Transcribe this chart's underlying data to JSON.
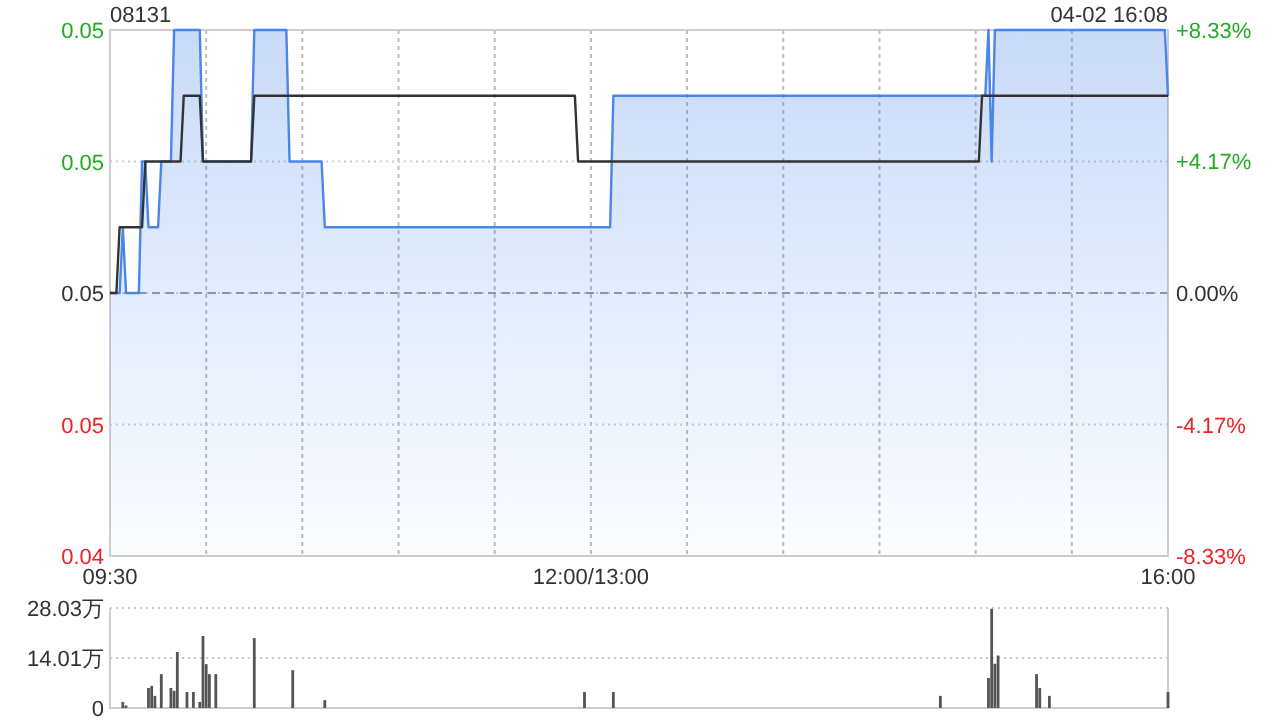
{
  "chart_data": [
    {
      "type": "line",
      "title": "08131",
      "annotations": [
        "04-02 16:08"
      ],
      "grid": true,
      "categories": [
        "09:30",
        null,
        null,
        null,
        null,
        null,
        null,
        null,
        null,
        null,
        null,
        null,
        null,
        null,
        null,
        null,
        null,
        null,
        null,
        null,
        null,
        null,
        null,
        null,
        null,
        null,
        null,
        null,
        null,
        null,
        null,
        null,
        null,
        null,
        null,
        null,
        null,
        null,
        null,
        null,
        null,
        null,
        null,
        null,
        null,
        null,
        null,
        null,
        null,
        null,
        null,
        null,
        null,
        null,
        null,
        null,
        null,
        null,
        null,
        null,
        null,
        null,
        null,
        null,
        null,
        null,
        null,
        null,
        null,
        null,
        null,
        null,
        null,
        null,
        null,
        null,
        null,
        null,
        null,
        null,
        null,
        null,
        null,
        null,
        null,
        null,
        null,
        null,
        null,
        null,
        null,
        null,
        null,
        null,
        null,
        null,
        null,
        null,
        null,
        null,
        null,
        null,
        null,
        null,
        null,
        null,
        null,
        null,
        null,
        null,
        null,
        null,
        null,
        null,
        null,
        null,
        null,
        null,
        null,
        null,
        null,
        null,
        null,
        null,
        null,
        null,
        null,
        null,
        null,
        null,
        null,
        null,
        null,
        null,
        null,
        null,
        null,
        null,
        null,
        null,
        null,
        null,
        null,
        null,
        null,
        null,
        null,
        null,
        null,
        null,
        "12:00/13:00",
        null,
        null,
        null,
        null,
        null,
        null,
        null,
        null,
        null,
        null,
        null,
        null,
        null,
        null,
        null,
        null,
        null,
        null,
        null,
        null,
        null,
        null,
        null,
        null,
        null,
        null,
        null,
        null,
        null,
        null,
        null,
        null,
        null,
        null,
        null,
        null,
        null,
        null,
        null,
        null,
        null,
        null,
        null,
        null,
        null,
        null,
        null,
        null,
        null,
        null,
        null,
        null,
        null,
        null,
        null,
        null,
        null,
        null,
        null,
        null,
        null,
        null,
        null,
        null,
        null,
        null,
        null,
        null,
        null,
        null,
        null,
        null,
        null,
        null,
        null,
        null,
        null,
        null,
        null,
        null,
        null,
        null,
        null,
        null,
        null,
        null,
        null,
        null,
        null,
        null,
        null,
        null,
        null,
        null,
        null,
        null,
        null,
        null,
        null,
        null,
        null,
        null,
        null,
        null,
        null,
        null,
        null,
        null,
        null,
        null,
        null,
        null,
        null,
        null,
        null,
        null,
        null,
        null,
        null,
        null,
        null,
        null,
        null,
        null,
        null,
        null,
        null,
        null,
        null,
        null,
        null,
        null,
        null,
        null,
        null,
        null,
        null,
        null,
        null,
        null,
        null,
        null,
        null,
        null,
        null,
        null,
        null,
        null,
        null,
        null,
        null,
        null,
        null,
        null,
        null,
        null,
        null,
        null,
        null,
        null,
        null,
        null,
        null,
        null,
        null,
        null,
        null,
        null,
        null,
        null,
        null,
        null,
        null,
        null,
        null,
        null,
        null,
        null,
        null,
        "16:00"
      ],
      "ylim": [
        0.044,
        0.052
      ],
      "yticks": [
        {
          "value": 0.052,
          "label": "0.05"
        },
        {
          "value": 0.05,
          "label": "0.05"
        },
        {
          "value": 0.048,
          "label": "0.05"
        },
        {
          "value": 0.046,
          "label": "0.05"
        },
        {
          "value": 0.044,
          "label": "0.04"
        }
      ],
      "y2lim": [
        -8.33,
        8.33
      ],
      "y2ticks": [
        {
          "value": 8.33,
          "label": "+8.33%"
        },
        {
          "value": 4.17,
          "label": "+4.17%"
        },
        {
          "value": 0,
          "label": "0.00%"
        },
        {
          "value": -4.17,
          "label": "-4.17%"
        },
        {
          "value": -8.33,
          "label": "-8.33%"
        }
      ],
      "ref_lines": [
        {
          "axis": "y",
          "value": 0.048,
          "color": "#999999",
          "line_style": "dashed"
        }
      ],
      "series": [
        {
          "type": "area",
          "color": "#4a86e8",
          "values": [
            0.048,
            0.048,
            0.048,
            0.048,
            0.049,
            0.048,
            0.048,
            0.048,
            0.048,
            0.048,
            0.05,
            0.05,
            0.049,
            0.049,
            0.049,
            0.049,
            0.05,
            0.05,
            0.05,
            0.05,
            0.052,
            0.052,
            0.052,
            0.052,
            0.052,
            0.052,
            0.052,
            0.052,
            0.052,
            0.05,
            0.05,
            0.05,
            0.05,
            0.05,
            0.05,
            0.05,
            0.05,
            0.05,
            0.05,
            0.05,
            0.05,
            0.05,
            0.05,
            0.05,
            0.05,
            0.052,
            0.052,
            0.052,
            0.052,
            0.052,
            0.052,
            0.052,
            0.052,
            0.052,
            0.052,
            0.052,
            0.05,
            0.05,
            0.05,
            0.05,
            0.05,
            0.05,
            0.05,
            0.05,
            0.05,
            0.05,
            0.05,
            0.049,
            0.049,
            0.049,
            0.049,
            0.049,
            0.049,
            0.049,
            0.049,
            0.049,
            0.049,
            0.049,
            0.049,
            0.049,
            0.049,
            0.049,
            0.049,
            0.049,
            0.049,
            0.049,
            0.049,
            0.049,
            0.049,
            0.049,
            0.049,
            0.049,
            0.049,
            0.049,
            0.049,
            0.049,
            0.049,
            0.049,
            0.049,
            0.049,
            0.049,
            0.049,
            0.049,
            0.049,
            0.049,
            0.049,
            0.049,
            0.049,
            0.049,
            0.049,
            0.049,
            0.049,
            0.049,
            0.049,
            0.049,
            0.049,
            0.049,
            0.049,
            0.049,
            0.049,
            0.049,
            0.049,
            0.049,
            0.049,
            0.049,
            0.049,
            0.049,
            0.049,
            0.049,
            0.049,
            0.049,
            0.049,
            0.049,
            0.049,
            0.049,
            0.049,
            0.049,
            0.049,
            0.049,
            0.049,
            0.049,
            0.049,
            0.049,
            0.049,
            0.049,
            0.049,
            0.049,
            0.049,
            0.049,
            0.049,
            0.049,
            0.049,
            0.049,
            0.049,
            0.049,
            0.049,
            0.049,
            0.051,
            0.051,
            0.051,
            0.051,
            0.051,
            0.051,
            0.051,
            0.051,
            0.051,
            0.051,
            0.051,
            0.051,
            0.051,
            0.051,
            0.051,
            0.051,
            0.051,
            0.051,
            0.051,
            0.051,
            0.051,
            0.051,
            0.051,
            0.051,
            0.051,
            0.051,
            0.051,
            0.051,
            0.051,
            0.051,
            0.051,
            0.051,
            0.051,
            0.051,
            0.051,
            0.051,
            0.051,
            0.051,
            0.051,
            0.051,
            0.051,
            0.051,
            0.051,
            0.051,
            0.051,
            0.051,
            0.051,
            0.051,
            0.051,
            0.051,
            0.051,
            0.051,
            0.051,
            0.051,
            0.051,
            0.051,
            0.051,
            0.051,
            0.051,
            0.051,
            0.051,
            0.051,
            0.051,
            0.051,
            0.051,
            0.051,
            0.051,
            0.051,
            0.051,
            0.051,
            0.051,
            0.051,
            0.051,
            0.051,
            0.051,
            0.051,
            0.051,
            0.051,
            0.051,
            0.051,
            0.051,
            0.051,
            0.051,
            0.051,
            0.051,
            0.051,
            0.051,
            0.051,
            0.051,
            0.051,
            0.051,
            0.051,
            0.051,
            0.051,
            0.051,
            0.051,
            0.051,
            0.051,
            0.051,
            0.051,
            0.051,
            0.051,
            0.051,
            0.051,
            0.051,
            0.051,
            0.051,
            0.051,
            0.051,
            0.051,
            0.051,
            0.051,
            0.051,
            0.051,
            0.051,
            0.051,
            0.051,
            0.052,
            0.05,
            0.052,
            0.052,
            0.052,
            0.052,
            0.052,
            0.052,
            0.052,
            0.052,
            0.052,
            0.052,
            0.052,
            0.052,
            0.052,
            0.052,
            0.052,
            0.052,
            0.052,
            0.052,
            0.052,
            0.052,
            0.052,
            0.052,
            0.052,
            0.052,
            0.052,
            0.052,
            0.052,
            0.052,
            0.052,
            0.052,
            0.052,
            0.052,
            0.052,
            0.052,
            0.052,
            0.052,
            0.052,
            0.052,
            0.052,
            0.052,
            0.052,
            0.052,
            0.052,
            0.052,
            0.052,
            0.052,
            0.052,
            0.052,
            0.052,
            0.052,
            0.052,
            0.052,
            0.052,
            0.052,
            0.051
          ]
        },
        {
          "type": "line",
          "color": "#333333",
          "values": [
            0.048,
            0.048,
            0.048,
            0.049,
            0.049,
            0.049,
            0.049,
            0.049,
            0.049,
            0.049,
            0.049,
            0.05,
            0.05,
            0.05,
            0.05,
            0.05,
            0.05,
            0.05,
            0.05,
            0.05,
            0.05,
            0.05,
            0.05,
            0.051,
            0.051,
            0.051,
            0.051,
            0.051,
            0.051,
            0.05,
            0.05,
            0.05,
            0.05,
            0.05,
            0.05,
            0.05,
            0.05,
            0.05,
            0.05,
            0.05,
            0.05,
            0.05,
            0.05,
            0.05,
            0.05,
            0.051,
            0.051,
            0.051,
            0.051,
            0.051,
            0.051,
            0.051,
            0.051,
            0.051,
            0.051,
            0.051,
            0.051,
            0.051,
            0.051,
            0.051,
            0.051,
            0.051,
            0.051,
            0.051,
            0.051,
            0.051,
            0.051,
            0.051,
            0.051,
            0.051,
            0.051,
            0.051,
            0.051,
            0.051,
            0.051,
            0.051,
            0.051,
            0.051,
            0.051,
            0.051,
            0.051,
            0.051,
            0.051,
            0.051,
            0.051,
            0.051,
            0.051,
            0.051,
            0.051,
            0.051,
            0.051,
            0.051,
            0.051,
            0.051,
            0.051,
            0.051,
            0.051,
            0.051,
            0.051,
            0.051,
            0.051,
            0.051,
            0.051,
            0.051,
            0.051,
            0.051,
            0.051,
            0.051,
            0.051,
            0.051,
            0.051,
            0.051,
            0.051,
            0.051,
            0.051,
            0.051,
            0.051,
            0.051,
            0.051,
            0.051,
            0.051,
            0.051,
            0.051,
            0.051,
            0.051,
            0.051,
            0.051,
            0.051,
            0.051,
            0.051,
            0.051,
            0.051,
            0.051,
            0.051,
            0.051,
            0.051,
            0.051,
            0.051,
            0.051,
            0.051,
            0.051,
            0.051,
            0.051,
            0.051,
            0.051,
            0.051,
            0.05,
            0.05,
            0.05,
            0.05,
            0.05,
            0.05,
            0.05,
            0.05,
            0.05,
            0.05,
            0.05,
            0.05,
            0.05,
            0.05,
            0.05,
            0.05,
            0.05,
            0.05,
            0.05,
            0.05,
            0.05,
            0.05,
            0.05,
            0.05,
            0.05,
            0.05,
            0.05,
            0.05,
            0.05,
            0.05,
            0.05,
            0.05,
            0.05,
            0.05,
            0.05,
            0.05,
            0.05,
            0.05,
            0.05,
            0.05,
            0.05,
            0.05,
            0.05,
            0.05,
            0.05,
            0.05,
            0.05,
            0.05,
            0.05,
            0.05,
            0.05,
            0.05,
            0.05,
            0.05,
            0.05,
            0.05,
            0.05,
            0.05,
            0.05,
            0.05,
            0.05,
            0.05,
            0.05,
            0.05,
            0.05,
            0.05,
            0.05,
            0.05,
            0.05,
            0.05,
            0.05,
            0.05,
            0.05,
            0.05,
            0.05,
            0.05,
            0.05,
            0.05,
            0.05,
            0.05,
            0.05,
            0.05,
            0.05,
            0.05,
            0.05,
            0.05,
            0.05,
            0.05,
            0.05,
            0.05,
            0.05,
            0.05,
            0.05,
            0.05,
            0.05,
            0.05,
            0.05,
            0.05,
            0.05,
            0.05,
            0.05,
            0.05,
            0.05,
            0.05,
            0.05,
            0.05,
            0.05,
            0.05,
            0.05,
            0.05,
            0.05,
            0.05,
            0.05,
            0.05,
            0.05,
            0.05,
            0.05,
            0.05,
            0.05,
            0.05,
            0.05,
            0.05,
            0.05,
            0.05,
            0.05,
            0.05,
            0.051,
            0.051,
            0.051,
            0.051,
            0.051,
            0.051,
            0.051,
            0.051,
            0.051,
            0.051,
            0.051,
            0.051,
            0.051,
            0.051,
            0.051,
            0.051,
            0.051,
            0.051,
            0.051,
            0.051,
            0.051,
            0.051,
            0.051,
            0.051,
            0.051,
            0.051,
            0.051,
            0.051,
            0.051,
            0.051,
            0.051,
            0.051,
            0.051,
            0.051,
            0.051,
            0.051,
            0.051,
            0.051,
            0.051,
            0.051,
            0.051,
            0.051,
            0.051,
            0.051,
            0.051,
            0.051,
            0.051,
            0.051,
            0.051,
            0.051,
            0.051,
            0.051,
            0.051,
            0.051,
            0.051,
            0.051,
            0.051,
            0.051,
            0.051
          ]
        }
      ]
    },
    {
      "type": "bar",
      "grid": "y",
      "categories": [
        null,
        null,
        null,
        null,
        null,
        null,
        null,
        null,
        null,
        null,
        null,
        null,
        null,
        null,
        null,
        null,
        null,
        null,
        null,
        null,
        null,
        null,
        null,
        null,
        null,
        null,
        null,
        null,
        null,
        null,
        null,
        null,
        null,
        null,
        null,
        null,
        null,
        null,
        null,
        null,
        null,
        null,
        null,
        null,
        null,
        null,
        null,
        null,
        null,
        null,
        null,
        null,
        null,
        null,
        null,
        null,
        null,
        null,
        null,
        null,
        null,
        null,
        null,
        null,
        null,
        null,
        null,
        null,
        null,
        null,
        null,
        null,
        null,
        null,
        null,
        null,
        null,
        null,
        null,
        null,
        null,
        null,
        null,
        null,
        null,
        null,
        null,
        null,
        null,
        null,
        null,
        null,
        null,
        null,
        null,
        null,
        null,
        null,
        null,
        null,
        null,
        null,
        null,
        null,
        null,
        null,
        null,
        null,
        null,
        null,
        null,
        null,
        null,
        null,
        null,
        null,
        null,
        null,
        null,
        null,
        null,
        null,
        null,
        null,
        null,
        null,
        null,
        null,
        null,
        null,
        null,
        null,
        null,
        null,
        null,
        null,
        null,
        null,
        null,
        null,
        null,
        null,
        null,
        null,
        null,
        null,
        null,
        null,
        null,
        null,
        null,
        null,
        null,
        null,
        null,
        null,
        null,
        null,
        null,
        null,
        null,
        null,
        null,
        null,
        null,
        null,
        null,
        null,
        null,
        null,
        null,
        null,
        null,
        null,
        null,
        null,
        null,
        null,
        null,
        null,
        null,
        null,
        null,
        null,
        null,
        null,
        null,
        null,
        null,
        null,
        null,
        null,
        null,
        null,
        null,
        null,
        null,
        null,
        null,
        null,
        null,
        null,
        null,
        null,
        null,
        null,
        null,
        null,
        null,
        null,
        null,
        null,
        null,
        null,
        null,
        null,
        null,
        null,
        null,
        null,
        null,
        null,
        null,
        null,
        null,
        null,
        null,
        null,
        null,
        null,
        null,
        null,
        null,
        null,
        null,
        null,
        null,
        null,
        null,
        null,
        null,
        null,
        null,
        null,
        null,
        null,
        null,
        null,
        null,
        null,
        null,
        null,
        null,
        null,
        null,
        null,
        null,
        null,
        null,
        null,
        null,
        null,
        null,
        null,
        null,
        null,
        null,
        null,
        null,
        null,
        null,
        null,
        null,
        null,
        null,
        null,
        null,
        null,
        null,
        null,
        null,
        null,
        null,
        null,
        null,
        null,
        null,
        null,
        null,
        null,
        null,
        null,
        null,
        null,
        null,
        null,
        null,
        null,
        null,
        null,
        null,
        null,
        null,
        null,
        null,
        null,
        null,
        null,
        null,
        null,
        null,
        null,
        null,
        null,
        null,
        null,
        null,
        null,
        null,
        null,
        null,
        null,
        null,
        null,
        null,
        null,
        null,
        null,
        null,
        null,
        null
      ],
      "ylim": [
        0,
        28.03
      ],
      "yticks": [
        {
          "value": 28.03,
          "label": "28.03万"
        },
        {
          "value": 14.01,
          "label": "14.01万"
        },
        0
      ],
      "series": [
        {
          "color": "#555555",
          "values": [
            0,
            0,
            0,
            0,
            1.7,
            0.7,
            0,
            0,
            0,
            0,
            0,
            0,
            5.6,
            6.2,
            3.4,
            0,
            9.5,
            0,
            0,
            5.6,
            4.8,
            15.7,
            0,
            0,
            4.5,
            0,
            4.5,
            0,
            1.7,
            20.2,
            12.3,
            9.5,
            0,
            9.5,
            0,
            0,
            0,
            0,
            0,
            0,
            0,
            0,
            0,
            0,
            0,
            19.6,
            0,
            0,
            0,
            0,
            0,
            0,
            0,
            0,
            0,
            0,
            0,
            10.6,
            0,
            0,
            0,
            0,
            0,
            0,
            0,
            0,
            0,
            2.2,
            0,
            0,
            0,
            0,
            0,
            0,
            0,
            0,
            0,
            0,
            0,
            0,
            0,
            0,
            0,
            0,
            0,
            0,
            0,
            0,
            0,
            0,
            0,
            0,
            0,
            0,
            0,
            0,
            0,
            0,
            0,
            0,
            0,
            0,
            0,
            0,
            0,
            0,
            0,
            0,
            0,
            0,
            0,
            0,
            0,
            0,
            0,
            0,
            0,
            0,
            0,
            0,
            0,
            0,
            0,
            0,
            0,
            0,
            0,
            0,
            0,
            0,
            0,
            0,
            0,
            0,
            0,
            0,
            0,
            0,
            0,
            0,
            0,
            0,
            0,
            0,
            0,
            0,
            0,
            0,
            4.5,
            0,
            0,
            0,
            0,
            0,
            0,
            0,
            0,
            4.5,
            0,
            0,
            0,
            0,
            0,
            0,
            0,
            0,
            0,
            0,
            0,
            0,
            0,
            0,
            0,
            0,
            0,
            0,
            0,
            0,
            0,
            0,
            0,
            0,
            0,
            0,
            0,
            0,
            0,
            0,
            0,
            0,
            0,
            0,
            0,
            0,
            0,
            0,
            0,
            0,
            0,
            0,
            0,
            0,
            0,
            0,
            0,
            0,
            0,
            0,
            0,
            0,
            0,
            0,
            0,
            0,
            0,
            0,
            0,
            0,
            0,
            0,
            0,
            0,
            0,
            0,
            0,
            0,
            0,
            0,
            0,
            0,
            0,
            0,
            0,
            0,
            0,
            0,
            0,
            0,
            0,
            0,
            0,
            0,
            0,
            0,
            0,
            0,
            0,
            0,
            0,
            0,
            0,
            0,
            0,
            0,
            0,
            0,
            0,
            0,
            0,
            3.4,
            0,
            0,
            0,
            0,
            0,
            0,
            0,
            0,
            0,
            0,
            0,
            0,
            0,
            0,
            8.4,
            27.8,
            12.4,
            14.7,
            0,
            0,
            0,
            0,
            0,
            0,
            0,
            0,
            0,
            0,
            0,
            9.5,
            5.6,
            0,
            0,
            3.4,
            0,
            0,
            0,
            0,
            0,
            0,
            0,
            0,
            0,
            0,
            0,
            0,
            0,
            0,
            0,
            0,
            0,
            0,
            0,
            0,
            0,
            0,
            0,
            0,
            0,
            0,
            0,
            0,
            0,
            0,
            0,
            0,
            0,
            0,
            0,
            0,
            4.5
          ]
        }
      ]
    }
  ]
}
